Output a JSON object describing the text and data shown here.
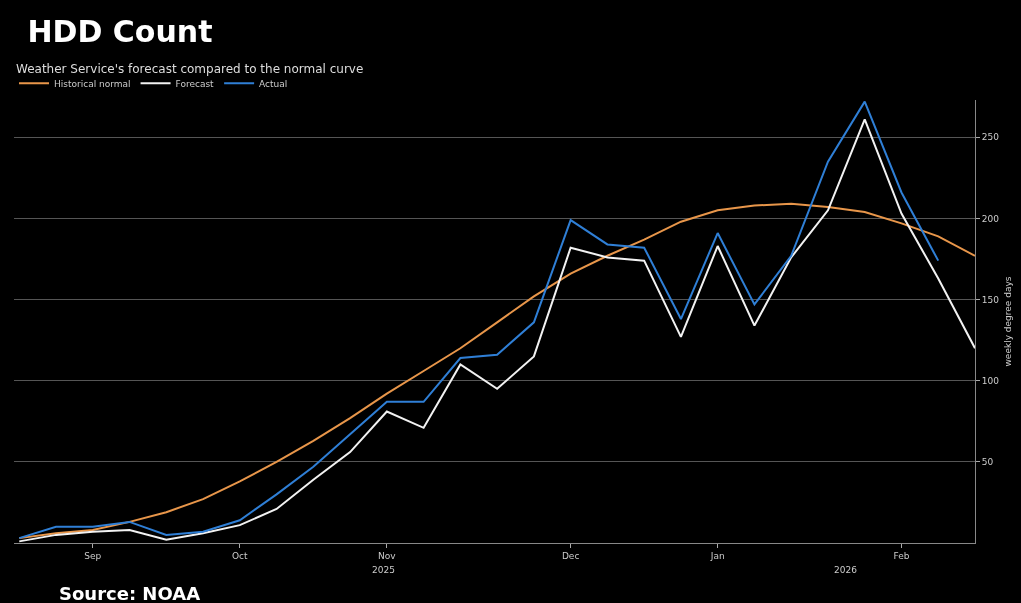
{
  "chart_data": {
    "type": "line",
    "title": "HDD Count",
    "subtitle": "Weather Service's forecast compared to the normal curve",
    "ylabel": "weekly degree days",
    "x": [
      "2025-08-23",
      "2025-08-30",
      "2025-09-06",
      "2025-09-13",
      "2025-09-20",
      "2025-09-27",
      "2025-10-04",
      "2025-10-11",
      "2025-10-18",
      "2025-10-25",
      "2025-11-01",
      "2025-11-08",
      "2025-11-15",
      "2025-11-22",
      "2025-11-29",
      "2025-12-06",
      "2025-12-13",
      "2025-12-20",
      "2025-12-27",
      "2026-01-03",
      "2026-01-10",
      "2026-01-17",
      "2026-01-24",
      "2026-01-31",
      "2026-02-07",
      "2026-02-14",
      "2026-02-21"
    ],
    "series": [
      {
        "name": "Historical normal",
        "color": "#e8964a",
        "values": [
          3,
          6,
          8,
          13,
          19,
          27,
          38,
          50,
          63,
          77,
          92,
          106,
          120,
          136,
          152,
          166,
          177,
          187,
          198,
          205,
          208,
          209,
          207,
          204,
          197,
          189,
          177
        ]
      },
      {
        "name": "Forecast",
        "color": "#f2f2f2",
        "values": [
          1,
          5,
          7,
          8,
          2,
          6,
          11,
          21,
          39,
          56,
          81,
          71,
          110,
          95,
          115,
          182,
          176,
          174,
          127,
          183,
          134,
          176,
          205,
          261,
          203,
          163,
          120
        ]
      },
      {
        "name": "Actual",
        "color": "#2f7fd6",
        "values": [
          3,
          10,
          10,
          13,
          5,
          7,
          14,
          30,
          47,
          67,
          87,
          87,
          114,
          116,
          136,
          199,
          184,
          182,
          138,
          191,
          147,
          177,
          235,
          272,
          216,
          174,
          null
        ]
      }
    ],
    "xlim": [
      "2025-08-22",
      "2026-02-21"
    ],
    "xticks": [
      {
        "value": "2025-09-06",
        "label": "Sep"
      },
      {
        "value": "2025-10-04",
        "label": "Oct"
      },
      {
        "value": "2025-11-01",
        "label": "Nov"
      },
      {
        "value": "2025-12-06",
        "label": "Dec"
      },
      {
        "value": "2026-01-03",
        "label": "Jan"
      },
      {
        "value": "2026-02-07",
        "label": "Feb"
      }
    ],
    "ylim": [
      0,
      273
    ],
    "yticks": [
      50,
      100,
      150,
      200,
      250
    ],
    "grid": "y",
    "legend": "top left",
    "marker": "none",
    "line_style": "solid",
    "annotations": [
      "2025",
      "2026",
      "Source: NOAA"
    ]
  }
}
